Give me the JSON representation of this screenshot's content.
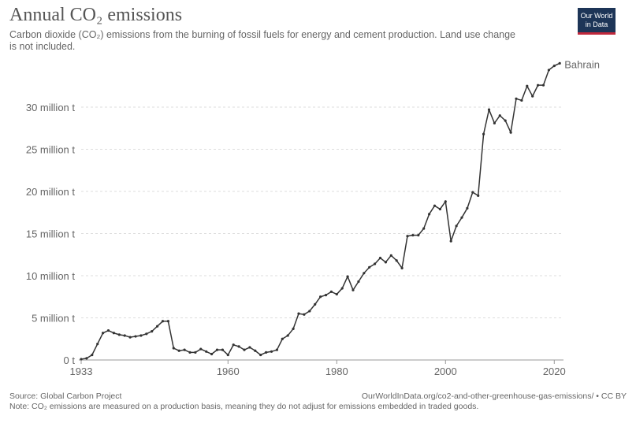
{
  "header": {
    "title": "Annual CO₂ emissions",
    "subtitle": "Carbon dioxide (CO₂) emissions from the burning of fossil fuels for energy and cement production. Land use change is not included.",
    "logo": "Our World in Data"
  },
  "footer": {
    "source": "Source: Global Carbon Project",
    "url": "OurWorldInData.org/co2-and-other-greenhouse-gas-emissions/ • CC BY",
    "note": "Note: CO₂ emissions are measured on a production basis, meaning they do not adjust for emissions embedded in traded goods."
  },
  "colors": {
    "line": "#333333",
    "grid": "#dddddd",
    "logo_bg": "#1d3557",
    "logo_accent": "#c0283c"
  },
  "chart_data": {
    "type": "line",
    "title": "Annual CO₂ emissions",
    "xlabel": "",
    "ylabel": "",
    "xlim": [
      1933,
      2021
    ],
    "ylim": [
      0,
      35
    ],
    "x_ticks": [
      1933,
      1960,
      1980,
      2000,
      2020
    ],
    "y_ticks": [
      0,
      5,
      10,
      15,
      20,
      25,
      30
    ],
    "y_tick_labels": [
      "0 t",
      "5 million t",
      "10 million t",
      "15 million t",
      "20 million t",
      "25 million t",
      "30 million t"
    ],
    "grid": true,
    "series": [
      {
        "name": "Bahrain",
        "unit": "million t",
        "x": [
          1933,
          1934,
          1935,
          1936,
          1937,
          1938,
          1939,
          1940,
          1941,
          1942,
          1943,
          1944,
          1945,
          1946,
          1947,
          1948,
          1949,
          1950,
          1951,
          1952,
          1953,
          1954,
          1955,
          1956,
          1957,
          1958,
          1959,
          1960,
          1961,
          1962,
          1963,
          1964,
          1965,
          1966,
          1967,
          1968,
          1969,
          1970,
          1971,
          1972,
          1973,
          1974,
          1975,
          1976,
          1977,
          1978,
          1979,
          1980,
          1981,
          1982,
          1983,
          1984,
          1985,
          1986,
          1987,
          1988,
          1989,
          1990,
          1991,
          1992,
          1993,
          1994,
          1995,
          1996,
          1997,
          1998,
          1999,
          2000,
          2001,
          2002,
          2003,
          2004,
          2005,
          2006,
          2007,
          2008,
          2009,
          2010,
          2011,
          2012,
          2013,
          2014,
          2015,
          2016,
          2017,
          2018,
          2019,
          2020,
          2021
        ],
        "values": [
          0.1,
          0.2,
          0.6,
          1.9,
          3.2,
          3.5,
          3.2,
          3.0,
          2.9,
          2.7,
          2.8,
          2.9,
          3.1,
          3.4,
          4.0,
          4.6,
          4.6,
          1.4,
          1.1,
          1.2,
          0.9,
          0.9,
          1.3,
          1.0,
          0.7,
          1.2,
          1.2,
          0.6,
          1.8,
          1.6,
          1.2,
          1.5,
          1.1,
          0.6,
          0.9,
          1.0,
          1.2,
          2.5,
          2.9,
          3.7,
          5.5,
          5.4,
          5.8,
          6.6,
          7.5,
          7.7,
          8.1,
          7.8,
          8.5,
          9.9,
          8.3,
          9.3,
          10.3,
          11.0,
          11.4,
          12.1,
          11.6,
          12.4,
          11.8,
          10.9,
          14.7,
          14.8,
          14.8,
          15.6,
          17.3,
          18.3,
          17.9,
          18.8,
          14.1,
          15.9,
          16.9,
          18.0,
          19.9,
          19.5,
          26.8,
          29.7,
          28.1,
          29.0,
          28.4,
          27.0,
          31.0,
          30.8,
          32.5,
          31.3,
          32.6,
          32.6,
          34.4,
          34.9,
          35.2
        ]
      }
    ]
  }
}
